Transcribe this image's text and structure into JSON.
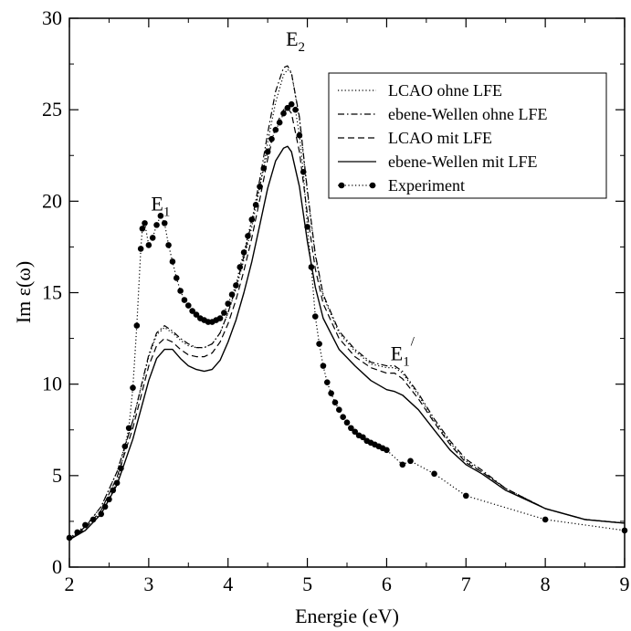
{
  "chart_data": {
    "type": "line",
    "xlabel": "Energie (eV)",
    "ylabel": "Im ε(ω)",
    "xlim": [
      2,
      9
    ],
    "ylim": [
      0,
      30
    ],
    "xticks": [
      "2",
      "3",
      "4",
      "5",
      "6",
      "7",
      "8",
      "9"
    ],
    "yticks": [
      "0",
      "5",
      "10",
      "15",
      "20",
      "25",
      "30"
    ],
    "grid": false,
    "legend_position": "top-right",
    "annotations": [
      {
        "main": "E",
        "sub": "1",
        "sup": "",
        "x": 3.15,
        "y": 19.5
      },
      {
        "main": "E",
        "sub": "2",
        "sup": "",
        "x": 4.85,
        "y": 28.5
      },
      {
        "main": "E",
        "sub": "1",
        "sup": "/",
        "x": 6.2,
        "y": 11.3
      }
    ],
    "series": [
      {
        "name": "LCAO ohne LFE",
        "style": "dotted",
        "x": [
          2.0,
          2.2,
          2.4,
          2.6,
          2.8,
          3.0,
          3.1,
          3.2,
          3.3,
          3.4,
          3.5,
          3.6,
          3.7,
          3.8,
          3.9,
          4.0,
          4.1,
          4.2,
          4.3,
          4.4,
          4.5,
          4.6,
          4.7,
          4.75,
          4.8,
          4.9,
          5.0,
          5.1,
          5.2,
          5.4,
          5.6,
          5.8,
          6.0,
          6.1,
          6.2,
          6.4,
          6.6,
          6.8,
          7.0,
          7.2,
          7.5,
          8.0,
          8.5,
          9.0
        ],
        "y": [
          1.5,
          2.2,
          3.3,
          5.2,
          8.0,
          11.5,
          12.7,
          13.1,
          12.8,
          12.4,
          12.1,
          12.0,
          12.0,
          12.2,
          12.8,
          13.9,
          15.2,
          16.8,
          18.6,
          20.8,
          23.2,
          25.4,
          26.9,
          27.2,
          27.0,
          24.5,
          20.5,
          17.0,
          14.8,
          12.8,
          11.8,
          11.1,
          10.9,
          10.9,
          10.6,
          9.4,
          8.0,
          6.8,
          5.8,
          5.2,
          4.3,
          3.2,
          2.6,
          2.4
        ]
      },
      {
        "name": "ebene-Wellen ohne LFE",
        "style": "dashdot",
        "x": [
          2.0,
          2.2,
          2.4,
          2.6,
          2.8,
          3.0,
          3.1,
          3.2,
          3.3,
          3.4,
          3.5,
          3.6,
          3.7,
          3.8,
          3.9,
          4.0,
          4.1,
          4.2,
          4.3,
          4.4,
          4.5,
          4.6,
          4.7,
          4.75,
          4.8,
          4.9,
          5.0,
          5.1,
          5.2,
          5.4,
          5.6,
          5.8,
          6.0,
          6.1,
          6.2,
          6.4,
          6.6,
          6.8,
          7.0,
          7.2,
          7.5,
          8.0,
          8.5,
          9.0
        ],
        "y": [
          1.5,
          2.2,
          3.3,
          5.2,
          8.0,
          11.6,
          12.8,
          13.2,
          12.9,
          12.5,
          12.2,
          12.0,
          12.0,
          12.2,
          12.8,
          13.9,
          15.3,
          17.0,
          18.9,
          21.2,
          23.7,
          26.0,
          27.3,
          27.4,
          27.0,
          24.6,
          20.6,
          17.1,
          14.9,
          12.9,
          11.9,
          11.2,
          11.0,
          11.0,
          10.7,
          9.5,
          8.1,
          6.9,
          5.9,
          5.3,
          4.3,
          3.2,
          2.6,
          2.4
        ]
      },
      {
        "name": "LCAO mit LFE",
        "style": "dashed",
        "x": [
          2.0,
          2.2,
          2.4,
          2.6,
          2.8,
          3.0,
          3.1,
          3.2,
          3.3,
          3.4,
          3.5,
          3.6,
          3.7,
          3.8,
          3.9,
          4.0,
          4.1,
          4.2,
          4.3,
          4.4,
          4.5,
          4.6,
          4.7,
          4.75,
          4.8,
          4.9,
          5.0,
          5.1,
          5.2,
          5.4,
          5.6,
          5.8,
          6.0,
          6.1,
          6.2,
          6.4,
          6.6,
          6.8,
          7.0,
          7.2,
          7.5,
          8.0,
          8.5,
          9.0
        ],
        "y": [
          1.5,
          2.1,
          3.1,
          4.9,
          7.6,
          11.0,
          12.1,
          12.5,
          12.3,
          11.9,
          11.6,
          11.5,
          11.5,
          11.7,
          12.3,
          13.3,
          14.6,
          16.2,
          18.0,
          20.1,
          22.3,
          24.1,
          25.0,
          25.1,
          24.8,
          22.7,
          19.3,
          16.3,
          14.4,
          12.5,
          11.5,
          10.9,
          10.6,
          10.6,
          10.3,
          9.2,
          7.9,
          6.7,
          5.7,
          5.2,
          4.3,
          3.2,
          2.6,
          2.4
        ]
      },
      {
        "name": "ebene-Wellen mit LFE",
        "style": "solid",
        "x": [
          2.0,
          2.2,
          2.4,
          2.6,
          2.8,
          3.0,
          3.1,
          3.2,
          3.3,
          3.4,
          3.5,
          3.6,
          3.7,
          3.8,
          3.9,
          4.0,
          4.1,
          4.2,
          4.3,
          4.4,
          4.5,
          4.6,
          4.7,
          4.75,
          4.8,
          4.9,
          5.0,
          5.1,
          5.2,
          5.4,
          5.6,
          5.8,
          6.0,
          6.1,
          6.2,
          6.4,
          6.6,
          6.8,
          7.0,
          7.2,
          7.5,
          8.0,
          8.5,
          9.0
        ],
        "y": [
          1.5,
          2.0,
          2.9,
          4.5,
          7.0,
          10.2,
          11.4,
          11.9,
          11.9,
          11.4,
          11.0,
          10.8,
          10.7,
          10.8,
          11.3,
          12.3,
          13.5,
          15.0,
          16.7,
          18.7,
          20.7,
          22.2,
          22.9,
          23.0,
          22.7,
          20.8,
          17.8,
          15.3,
          13.6,
          11.9,
          11.0,
          10.2,
          9.7,
          9.6,
          9.4,
          8.6,
          7.5,
          6.4,
          5.6,
          5.1,
          4.2,
          3.2,
          2.6,
          2.4
        ]
      },
      {
        "name": "Experiment",
        "style": "dotted-markers",
        "x": [
          2.0,
          2.1,
          2.2,
          2.3,
          2.4,
          2.45,
          2.5,
          2.55,
          2.6,
          2.65,
          2.7,
          2.75,
          2.8,
          2.85,
          2.9,
          2.92,
          2.95,
          3.0,
          3.05,
          3.1,
          3.15,
          3.2,
          3.25,
          3.3,
          3.35,
          3.4,
          3.45,
          3.5,
          3.55,
          3.6,
          3.65,
          3.7,
          3.75,
          3.8,
          3.85,
          3.9,
          3.95,
          4.0,
          4.05,
          4.1,
          4.15,
          4.2,
          4.25,
          4.3,
          4.35,
          4.4,
          4.45,
          4.5,
          4.55,
          4.6,
          4.65,
          4.7,
          4.75,
          4.8,
          4.85,
          4.9,
          4.95,
          5.0,
          5.05,
          5.1,
          5.15,
          5.2,
          5.25,
          5.3,
          5.35,
          5.4,
          5.45,
          5.5,
          5.55,
          5.6,
          5.65,
          5.7,
          5.75,
          5.8,
          5.85,
          5.9,
          5.95,
          6.0,
          6.2,
          6.3,
          6.6,
          7.0,
          8.0,
          9.0
        ],
        "y": [
          1.6,
          1.9,
          2.3,
          2.6,
          2.9,
          3.3,
          3.7,
          4.2,
          4.6,
          5.4,
          6.6,
          7.6,
          9.8,
          13.2,
          17.4,
          18.5,
          18.8,
          17.6,
          18.0,
          18.7,
          19.2,
          18.8,
          17.6,
          16.7,
          15.8,
          15.1,
          14.6,
          14.3,
          14.0,
          13.8,
          13.6,
          13.5,
          13.4,
          13.4,
          13.5,
          13.6,
          13.9,
          14.4,
          14.9,
          15.4,
          16.4,
          17.2,
          18.1,
          19.0,
          19.8,
          20.8,
          21.8,
          22.7,
          23.4,
          23.9,
          24.3,
          24.8,
          25.1,
          25.3,
          25.0,
          23.6,
          21.6,
          18.6,
          16.4,
          13.7,
          12.2,
          11.0,
          10.1,
          9.5,
          9.0,
          8.6,
          8.2,
          7.9,
          7.6,
          7.4,
          7.2,
          7.1,
          6.9,
          6.8,
          6.7,
          6.6,
          6.5,
          6.4,
          5.6,
          5.8,
          5.1,
          3.9,
          2.6,
          2.0
        ]
      }
    ]
  }
}
